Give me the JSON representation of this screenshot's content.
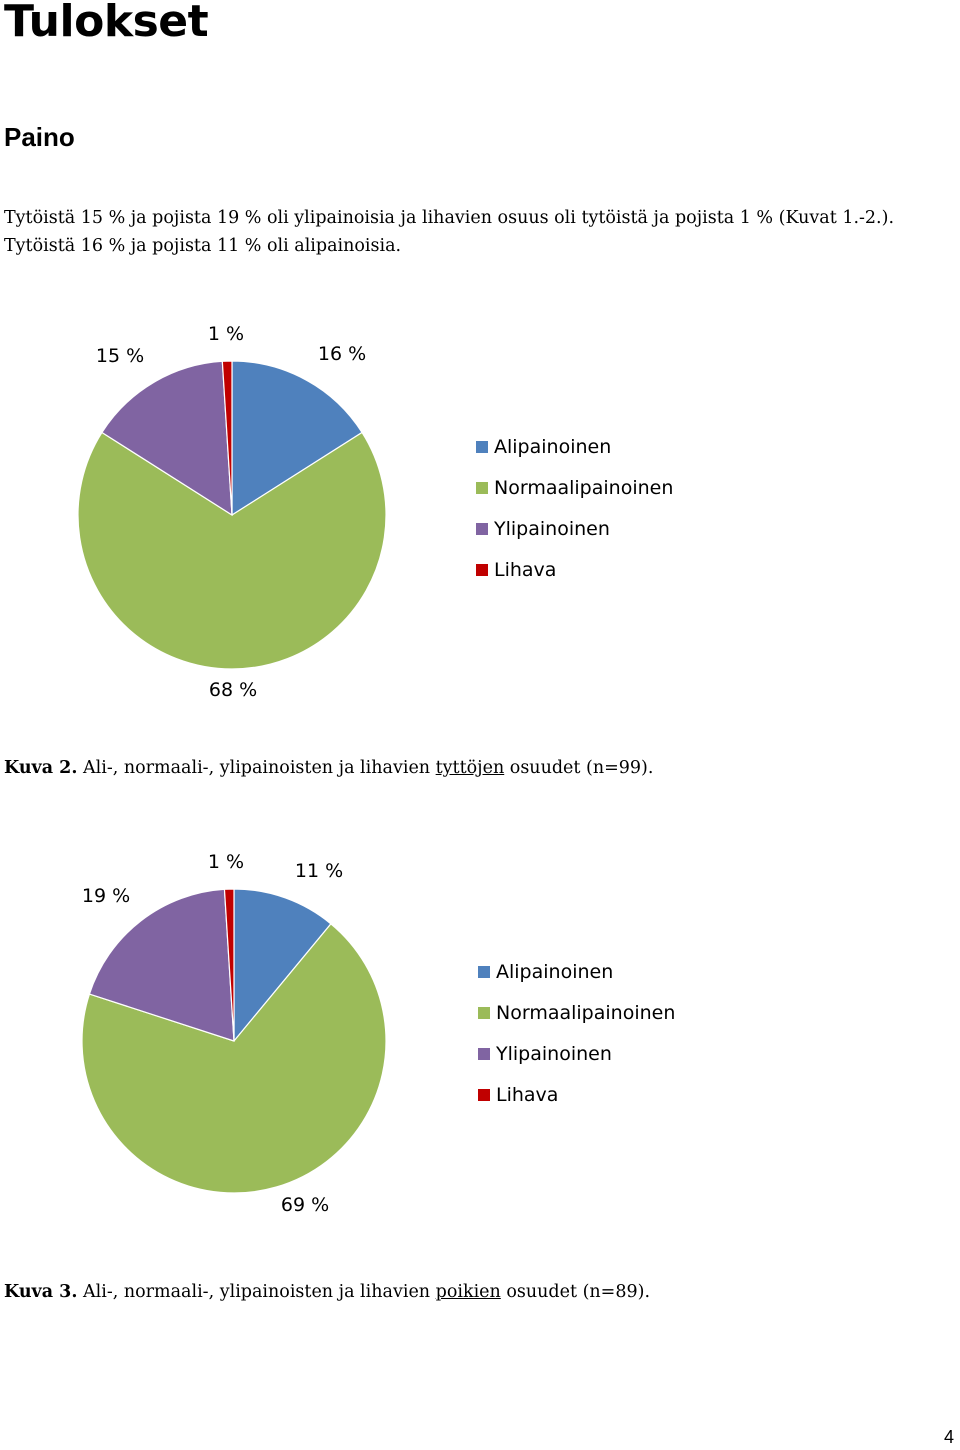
{
  "page": {
    "title": "Tulokset",
    "section": "Paino",
    "paragraph_line1": "Tytöistä 15 % ja pojista 19 % oli ylipainoisia ja lihavien osuus oli tytöistä ja pojista 1 % (Kuvat 1.-2.).",
    "paragraph_line2": "Tytöistä 16 % ja pojista 11 % oli alipainoisia.",
    "page_number": "4"
  },
  "captions": [
    {
      "label": "Kuva 2.",
      "before": " Ali-, normaali-, ylipainoisten ja lihavien ",
      "underlined": "tyttöjen",
      "after": " osuudet (n=99)."
    },
    {
      "label": "Kuva 3.",
      "before": " Ali-, normaali-, ylipainoisten ja lihavien ",
      "underlined": "poikien",
      "after": " osuudet (n=89)."
    }
  ],
  "chart_data": [
    {
      "type": "pie",
      "categories": [
        "Alipainoinen",
        "Normaalipainoinen",
        "Ylipainoinen",
        "Lihava"
      ],
      "values": [
        16,
        68,
        15,
        1
      ],
      "data_labels": [
        "16 %",
        "68 %",
        "15 %",
        "1 %"
      ],
      "colors": [
        "#4F81BD",
        "#9BBB59",
        "#8064A2",
        "#C00000"
      ],
      "start": "12 o'clock, clockwise",
      "legend": "right"
    },
    {
      "type": "pie",
      "categories": [
        "Alipainoinen",
        "Normaalipainoinen",
        "Ylipainoinen",
        "Lihava"
      ],
      "values": [
        11,
        69,
        19,
        1
      ],
      "data_labels": [
        "11 %",
        "69 %",
        "19 %",
        "1 %"
      ],
      "colors": [
        "#4F81BD",
        "#9BBB59",
        "#8064A2",
        "#C00000"
      ],
      "start": "12 o'clock, clockwise",
      "legend": "right"
    }
  ]
}
